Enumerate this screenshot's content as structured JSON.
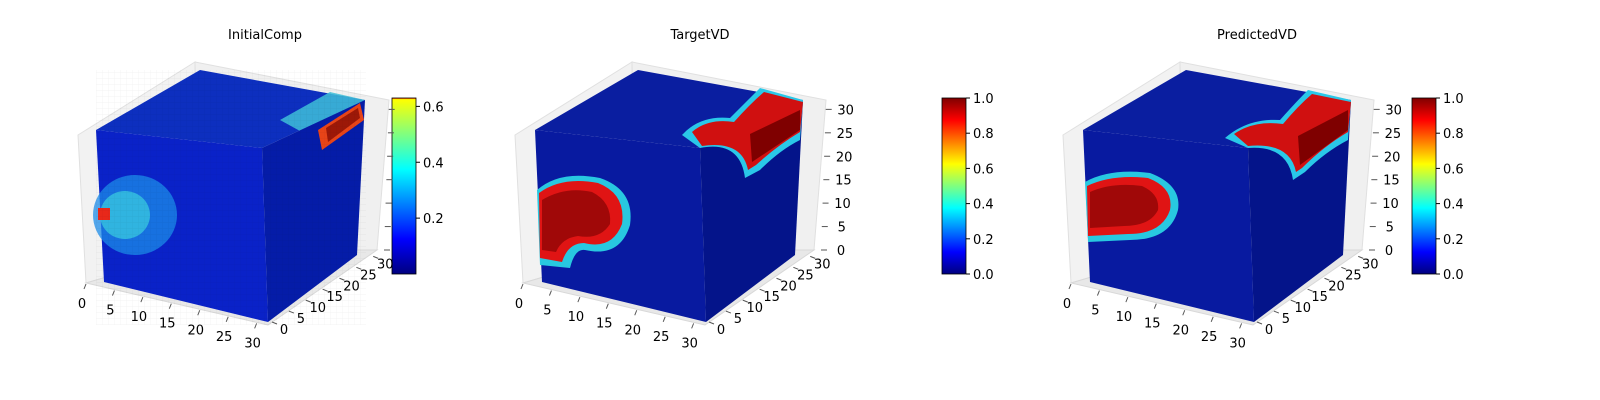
{
  "chart_data": [
    {
      "type": "heatmap",
      "title": "InitialComp",
      "x_ticks": [
        "0",
        "5",
        "10",
        "15",
        "20",
        "25",
        "30"
      ],
      "y_ticks": [
        "0",
        "5",
        "10",
        "15",
        "20",
        "25",
        "30"
      ],
      "z_ticks": [],
      "xlim": [
        0,
        32
      ],
      "ylim": [
        0,
        32
      ],
      "zlim": [
        0,
        32
      ],
      "colormap": "jet",
      "colorbar": {
        "range": [
          0.0,
          0.63
        ],
        "ticks": [
          "0.2",
          "0.4",
          "0.6"
        ],
        "tick_values": [
          0.2,
          0.4,
          0.6
        ]
      }
    },
    {
      "type": "heatmap",
      "title": "TargetVD",
      "x_ticks": [
        "0",
        "5",
        "10",
        "15",
        "20",
        "25",
        "30"
      ],
      "y_ticks": [
        "0",
        "5",
        "10",
        "15",
        "20",
        "25",
        "30"
      ],
      "z_ticks": [
        "0",
        "5",
        "10",
        "15",
        "20",
        "25",
        "30"
      ],
      "xlim": [
        0,
        32
      ],
      "ylim": [
        0,
        32
      ],
      "zlim": [
        0,
        32
      ],
      "colormap": "jet",
      "colorbar": {
        "range": [
          0.0,
          1.0
        ],
        "ticks": [
          "0.0",
          "0.2",
          "0.4",
          "0.6",
          "0.8",
          "1.0"
        ],
        "tick_values": [
          0.0,
          0.2,
          0.4,
          0.6,
          0.8,
          1.0
        ]
      }
    },
    {
      "type": "heatmap",
      "title": "PredictedVD",
      "x_ticks": [
        "0",
        "5",
        "10",
        "15",
        "20",
        "25",
        "30"
      ],
      "y_ticks": [
        "0",
        "5",
        "10",
        "15",
        "20",
        "25",
        "30"
      ],
      "z_ticks": [
        "0",
        "5",
        "10",
        "15",
        "20",
        "25",
        "30"
      ],
      "xlim": [
        0,
        32
      ],
      "ylim": [
        0,
        32
      ],
      "zlim": [
        0,
        32
      ],
      "colormap": "jet",
      "colorbar": {
        "range": [
          0.0,
          1.0
        ],
        "ticks": [
          "0.0",
          "0.2",
          "0.4",
          "0.6",
          "0.8",
          "1.0"
        ],
        "tick_values": [
          0.0,
          0.2,
          0.4,
          0.6,
          0.8,
          1.0
        ]
      }
    }
  ],
  "colors": {
    "background": "#ffffff",
    "pane": "#f2f2f2",
    "grid": "#d6d6d6"
  }
}
